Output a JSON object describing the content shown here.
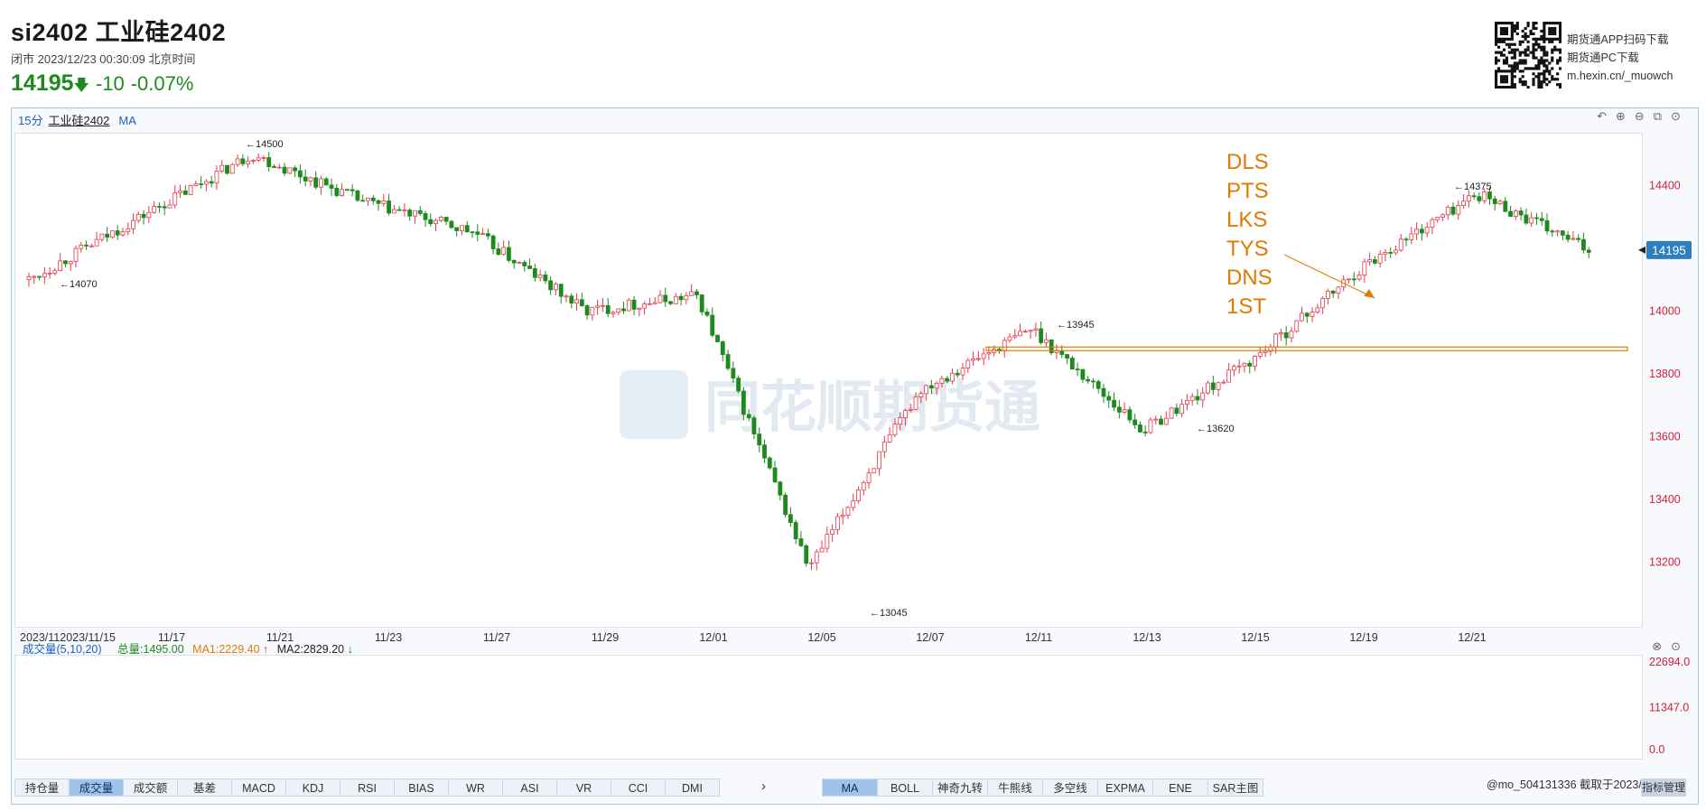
{
  "header": {
    "title": "si2402 工业硅2402",
    "status": "闭市  2023/12/23 00:30:09 北京时间",
    "price": "14195",
    "change": "-10",
    "change_pct": "-0.07%",
    "price_color": "#1e8a1e"
  },
  "promo": {
    "line1": "期货通APP扫码下载",
    "line2": "期货通PC下载",
    "line3": "m.hexin.cn/_muowch"
  },
  "chart": {
    "period": "15分",
    "name": "工业硅2402",
    "indicator": "MA",
    "watermark": "同花顺期货通",
    "current_price_tag": "14195",
    "y_ticks": [
      "14400",
      "14200",
      "14000",
      "13800",
      "13600",
      "13400",
      "13200"
    ],
    "x_ticks": [
      "2023/11/15",
      "11/17",
      "11/21",
      "11/23",
      "11/27",
      "11/29",
      "12/01",
      "12/05",
      "12/07",
      "12/11",
      "12/13",
      "12/15",
      "12/19",
      "12/21"
    ],
    "x_tick_prefix": "2023/11",
    "annotations": [
      "14500",
      "14070",
      "14375",
      "13945",
      "13620",
      "13045"
    ],
    "overlay_text": [
      "DLS",
      "PTS",
      "LKS",
      "TYS",
      "DNS",
      "1ST"
    ],
    "colors": {
      "up": "#e8394a",
      "down": "#1e8a1e",
      "annotation": "#e07b00",
      "axis_text": "#d0213b"
    }
  },
  "chart_data": {
    "type": "candlestick",
    "ylim": [
      13000,
      14560
    ],
    "keypoints": [
      {
        "label": "11/15",
        "price": 14100
      },
      {
        "label": "11/17",
        "price": 14300
      },
      {
        "label": "11/20",
        "price": 14500
      },
      {
        "label": "11/22",
        "price": 14350
      },
      {
        "label": "11/24",
        "price": 14250
      },
      {
        "label": "11/28",
        "price": 14000
      },
      {
        "label": "12/01",
        "price": 14050
      },
      {
        "label": "12/05",
        "price": 13180
      },
      {
        "label": "12/07",
        "price": 13750
      },
      {
        "label": "12/11",
        "price": 13945
      },
      {
        "label": "12/13",
        "price": 13620
      },
      {
        "label": "12/15",
        "price": 13850
      },
      {
        "label": "12/19",
        "price": 14150
      },
      {
        "label": "12/21",
        "price": 14375
      },
      {
        "label": "12/22",
        "price": 14195
      }
    ],
    "support_line": 13880
  },
  "volume": {
    "title": "成交量(5,10,20)",
    "total": "总量:1495.00",
    "ma1": "MA1:2229.40",
    "ma2": "MA2:2829.20",
    "y_ticks": [
      "22694.0",
      "11347.0",
      "0.0"
    ]
  },
  "tabs_left": [
    "持仓量",
    "成交量",
    "成交额",
    "基差",
    "MACD",
    "KDJ",
    "RSI",
    "BIAS",
    "WR",
    "ASI",
    "VR",
    "CCI",
    "DMI"
  ],
  "tabs_left_active": "成交量",
  "tabs_right": [
    "MA",
    "BOLL",
    "神奇九转",
    "牛熊线",
    "多空线",
    "EXPMA",
    "ENE",
    "SAR主图"
  ],
  "tabs_right_active": "MA",
  "credit": "@mo_504131336  截取于2023/12/23",
  "corner_button": "指标管理"
}
